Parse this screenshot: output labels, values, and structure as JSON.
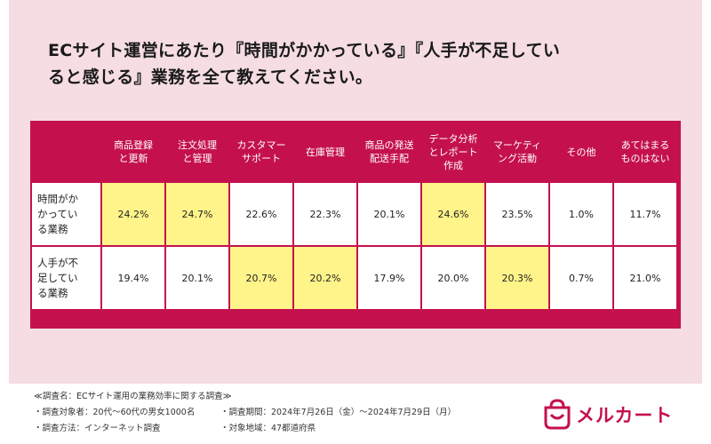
{
  "title_line1": "ECサイト運営にあたり『時間がかかっている』『人手が不足してい",
  "title_line2": "ると感じる』業務を全て教えてください。",
  "chart_data": {
    "type": "table",
    "columns": [
      "商品登録\nと更新",
      "注文処理\nと管理",
      "カスタマー\nサポート",
      "在庫管理",
      "商品の発送\n配送手配",
      "データ分析\nとレポート\n作成",
      "マーケティ\nング活動",
      "その他",
      "あてはまる\nものはない"
    ],
    "rows": [
      {
        "label": "時間がか\nかってい\nる業務",
        "values": [
          "24.2%",
          "24.7%",
          "22.6%",
          "22.3%",
          "20.1%",
          "24.6%",
          "23.5%",
          "1.0%",
          "11.7%"
        ],
        "highlight": [
          true,
          true,
          false,
          false,
          false,
          true,
          false,
          false,
          false
        ]
      },
      {
        "label": "人手が不\n足してい\nる業務",
        "values": [
          "19.4%",
          "20.1%",
          "20.7%",
          "20.2%",
          "17.9%",
          "20.0%",
          "20.3%",
          "0.7%",
          "21.0%"
        ],
        "highlight": [
          false,
          false,
          true,
          true,
          false,
          false,
          true,
          false,
          false
        ]
      }
    ],
    "colors": {
      "header": "#c4114e",
      "highlight": "#fff48a",
      "background": "#f5dde3"
    }
  },
  "footer": {
    "survey_name": "≪調査名：ECサイト運用の業務効率に関する調査≫",
    "target": "・調査対象者：20代〜60代の男女1000名",
    "period": "・調査期間：2024年7月26日（金）〜2024年7月29日（月）",
    "method": "・調査方法：インターネット調査",
    "region": "・対象地域：47都道府県"
  },
  "logo": {
    "text": "メルカート",
    "icon": "shopping-bag-logo-icon"
  }
}
